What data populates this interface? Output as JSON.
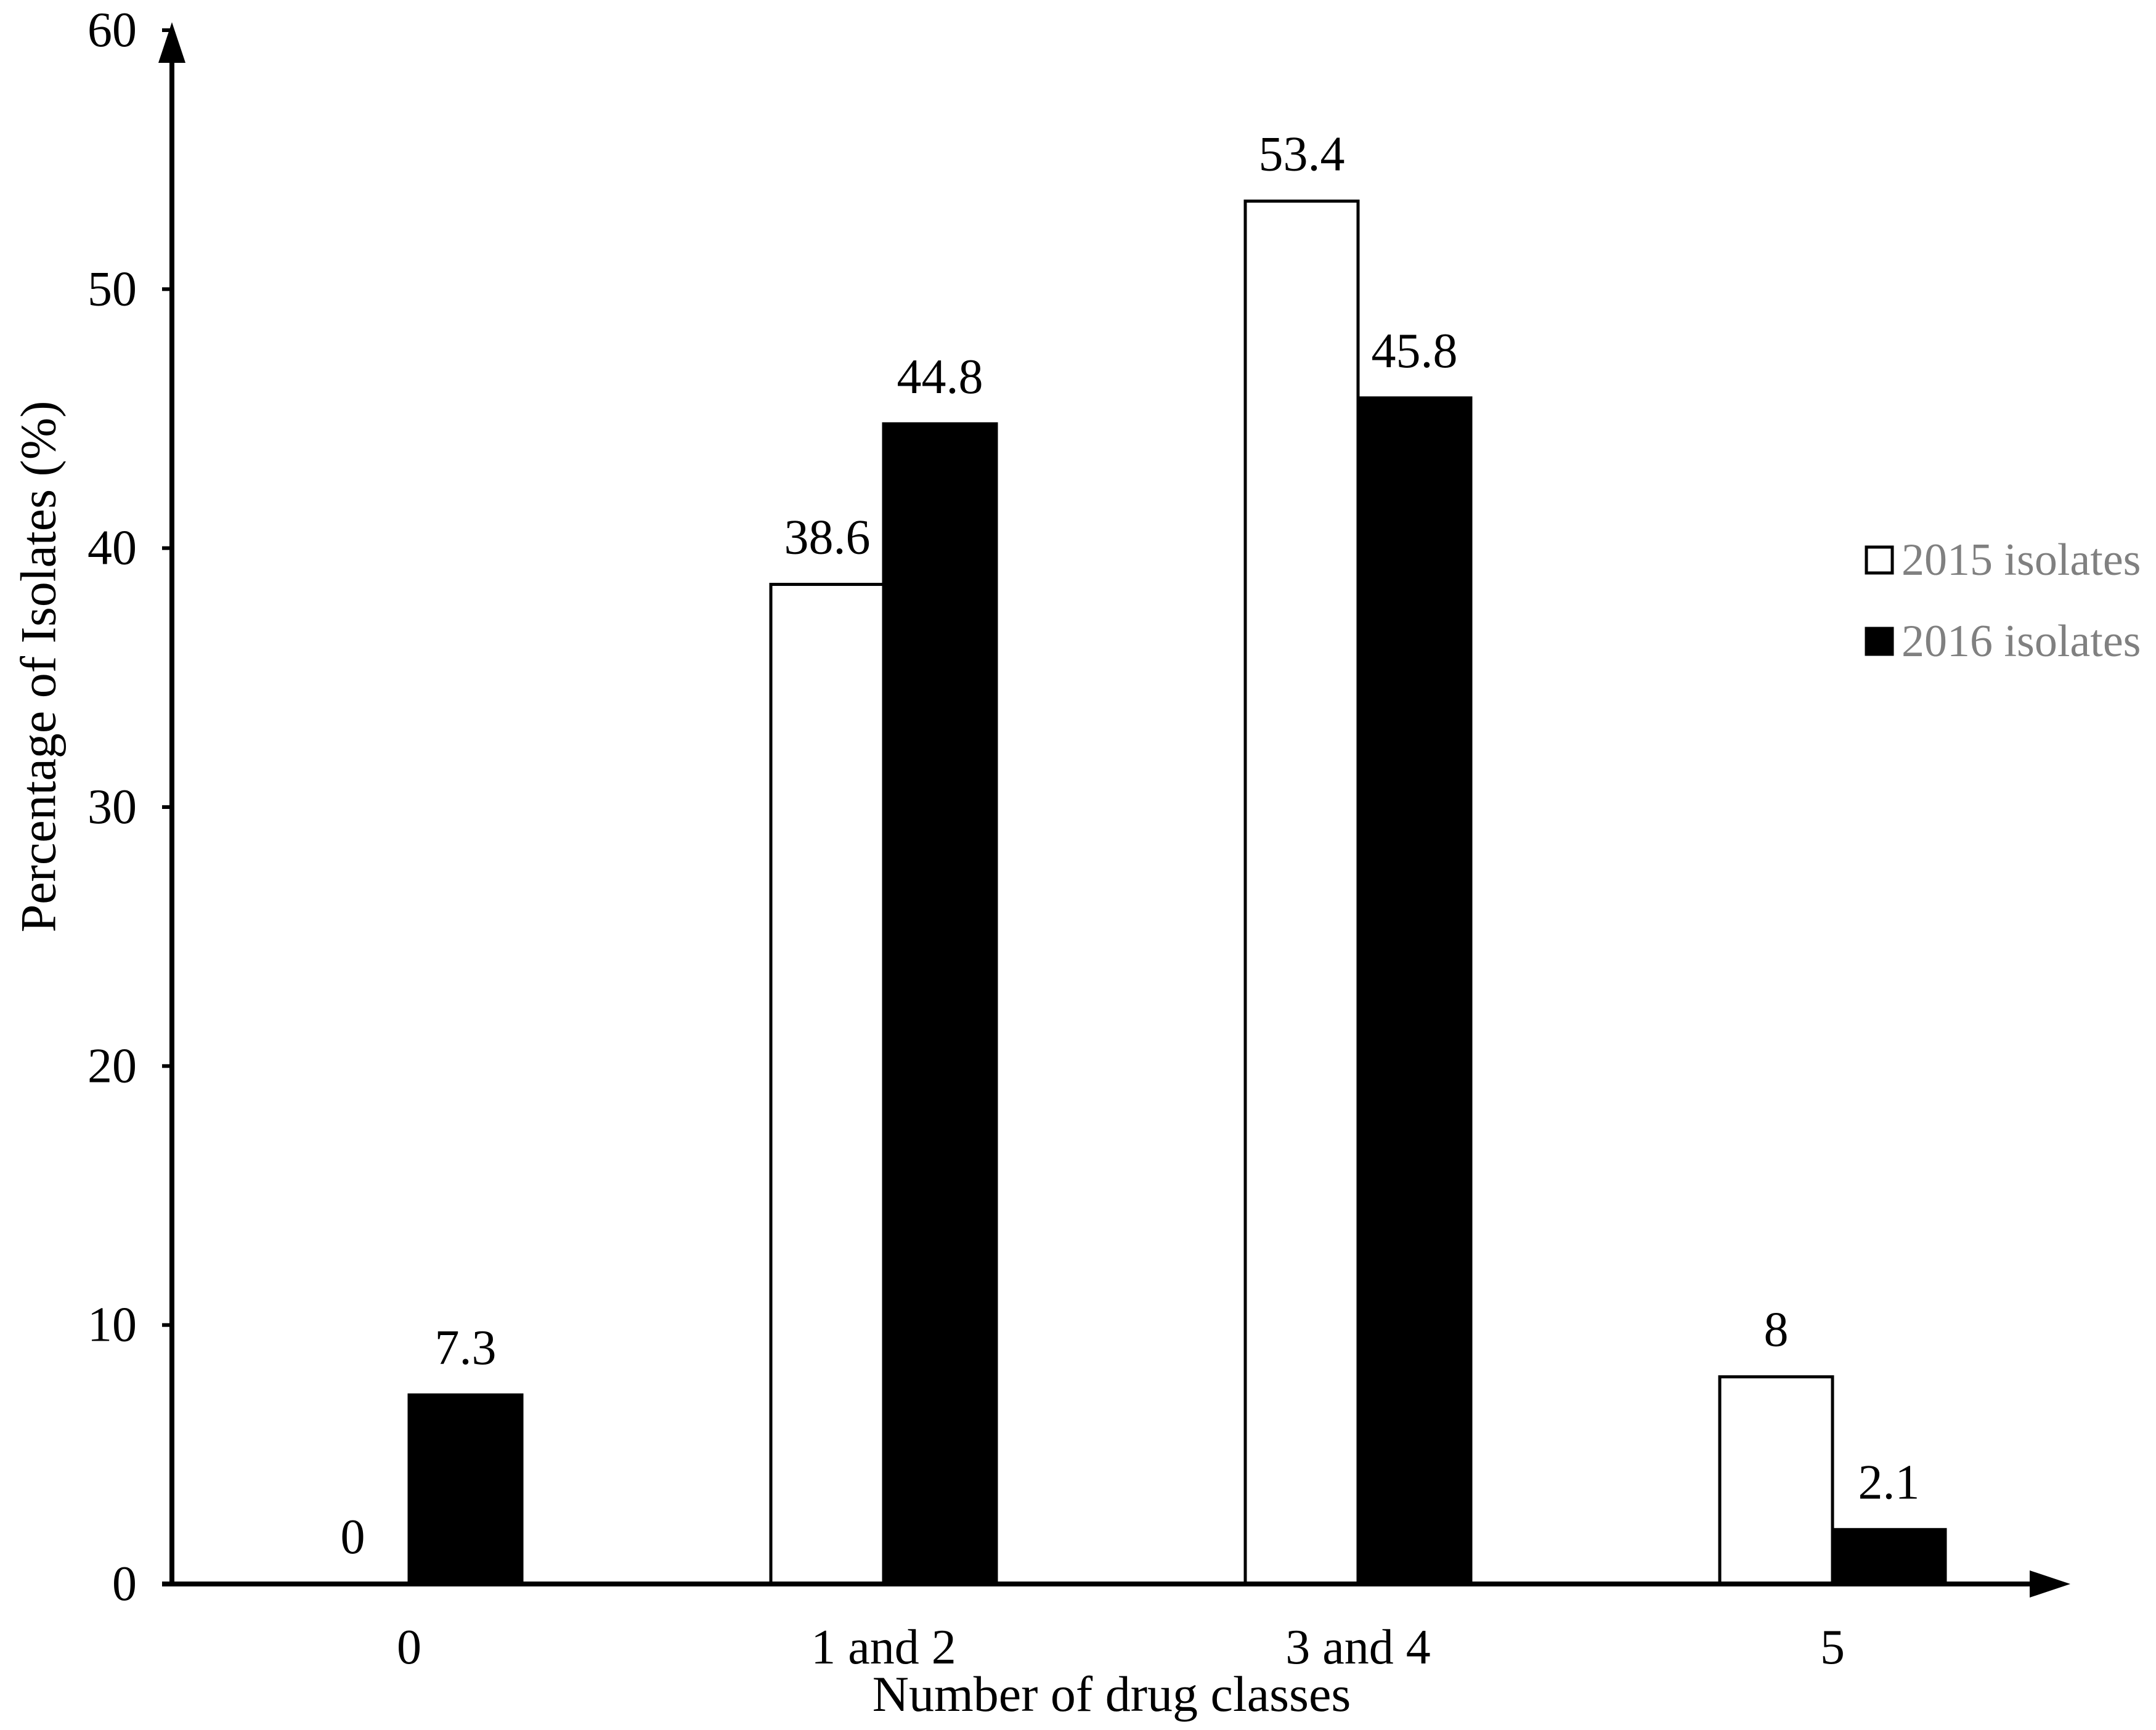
{
  "chart_data": {
    "type": "bar",
    "xlabel": "Number of drug classes",
    "ylabel": "Percentage of Isolates (%)",
    "categories": [
      "0",
      "1 and 2",
      "3 and 4",
      "5"
    ],
    "series": [
      {
        "name": "2015 isolates",
        "values": [
          0,
          38.6,
          53.4,
          8
        ],
        "color": "#ffffff"
      },
      {
        "name": "2016 isolates",
        "values": [
          7.3,
          44.8,
          45.8,
          2.1
        ],
        "color": "#000000"
      }
    ],
    "ylim": [
      0,
      60
    ],
    "yticks": [
      0,
      10,
      20,
      30,
      40,
      50,
      60
    ],
    "grid": false,
    "legend": "right",
    "data_labels": true
  },
  "colors": {
    "axis": "#000000",
    "bar_stroke": "#000000",
    "text": "#000000",
    "legend_text": "#808080",
    "background": "#ffffff"
  }
}
